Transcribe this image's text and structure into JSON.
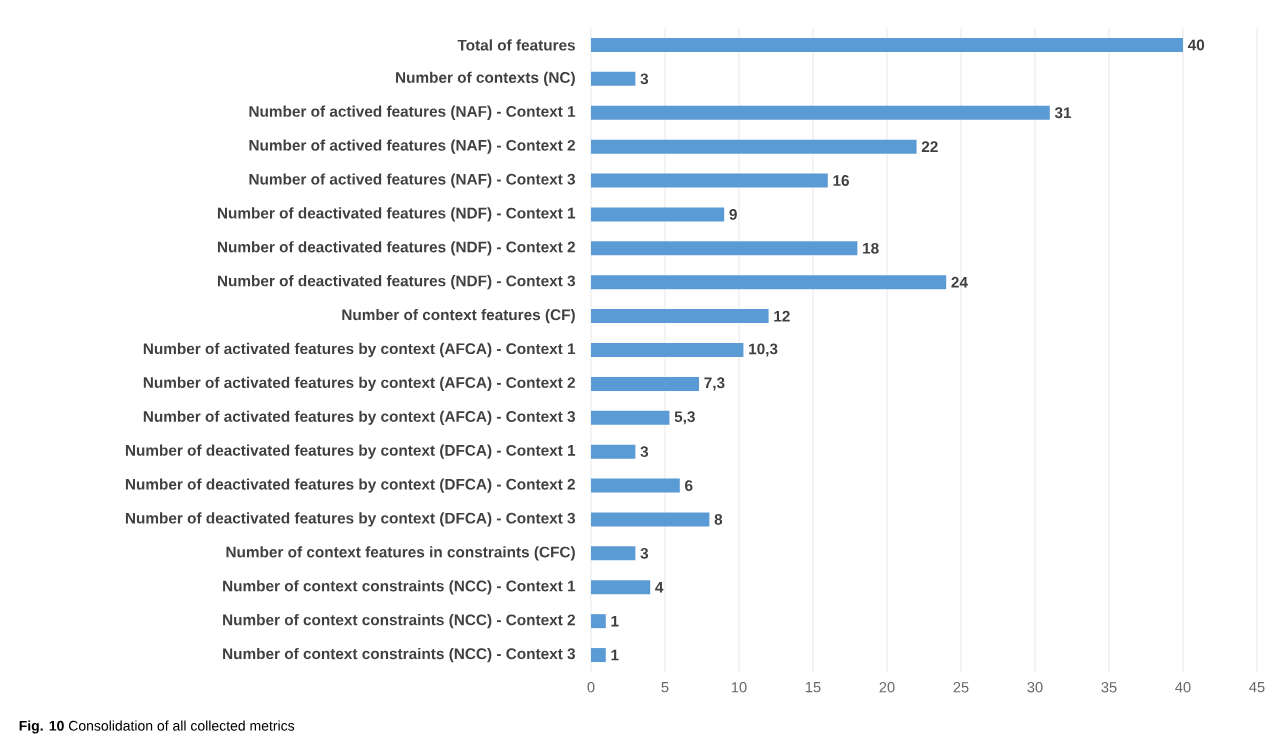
{
  "chart_data": {
    "type": "bar",
    "orientation": "horizontal",
    "categories": [
      "Total of features",
      "Number of contexts (NC)",
      "Number of actived features (NAF) - Context 1",
      "Number of actived features (NAF) - Context 2",
      "Number of actived features (NAF) - Context 3",
      "Number of deactivated features (NDF) - Context 1",
      "Number of deactivated features (NDF) - Context 2",
      "Number of deactivated features (NDF) - Context 3",
      "Number of context features (CF)",
      "Number of activated features by context (AFCA) - Context 1",
      "Number of activated features by context (AFCA) - Context 2",
      "Number of activated features by context (AFCA) - Context 3",
      "Number of deactivated features by context (DFCA) - Context 1",
      "Number of deactivated features by context (DFCA) - Context 2",
      "Number of deactivated features by context (DFCA) - Context 3",
      "Number of context features in constraints (CFC)",
      "Number of context constraints (NCC) - Context 1",
      "Number of context constraints (NCC) - Context 2",
      "Number of context constraints (NCC) - Context 3"
    ],
    "values": [
      40,
      3,
      31,
      22,
      16,
      9,
      18,
      24,
      12,
      10.3,
      7.3,
      5.3,
      3,
      6,
      8,
      3,
      4,
      1,
      1
    ],
    "value_labels": [
      "40",
      "3",
      "31",
      "22",
      "16",
      "9",
      "18",
      "24",
      "12",
      "10,3",
      "7,3",
      "5,3",
      "3",
      "6",
      "8",
      "3",
      "4",
      "1",
      "1"
    ],
    "color": "#5b9bd5",
    "xlim": [
      0,
      45
    ],
    "xticks": [
      0,
      5,
      10,
      15,
      20,
      25,
      30,
      35,
      40,
      45
    ],
    "grid": "x",
    "annotations": [
      "**Fig. 10** Consolidation of all collected metrics"
    ]
  }
}
